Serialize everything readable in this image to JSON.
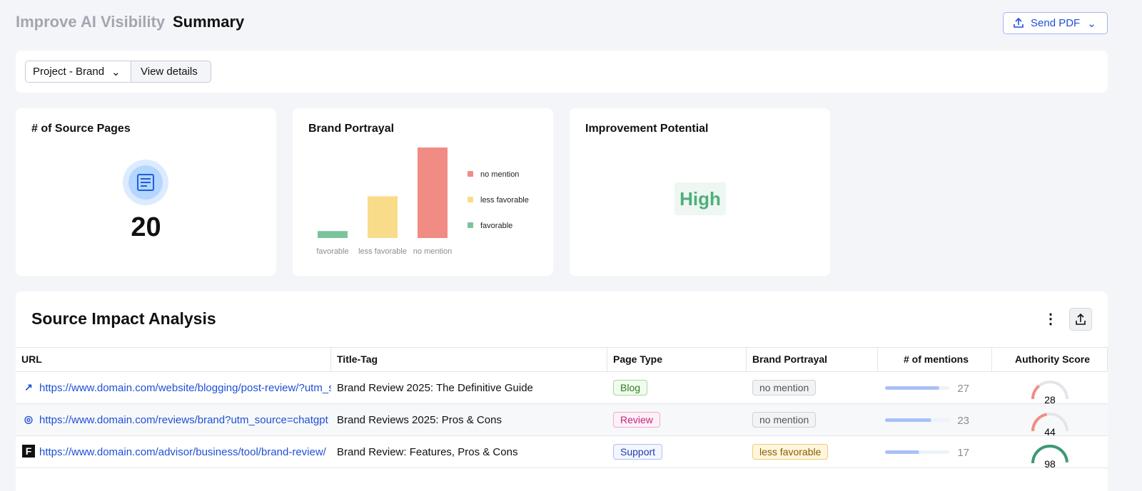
{
  "header": {
    "breadcrumb": "Improve AI Visibility",
    "title": "Summary",
    "send_pdf": "Send PDF"
  },
  "filters": {
    "project": "Project - Brand",
    "view_details": "View details"
  },
  "source_pages": {
    "title": "# of Source Pages",
    "value": 20
  },
  "brand_portrayal": {
    "title": "Brand Portrayal"
  },
  "chart_data": {
    "type": "bar",
    "categories": [
      "favorable",
      "less favorable",
      "no mention"
    ],
    "values": [
      1,
      6,
      13
    ],
    "colors": [
      "#7cc39a",
      "#f9dc8a",
      "#f08c84"
    ]
  },
  "improvement": {
    "title": "Improvement Potential",
    "value": "High"
  },
  "table": {
    "title": "Source Impact Analysis",
    "columns": [
      "URL",
      "Title-Tag",
      "Page Type",
      "Brand Portrayal",
      "# of mentions",
      "Authority Score"
    ],
    "mentions_lim": [
      0,
      32
    ],
    "authority_lim": [
      0,
      100
    ],
    "rows": [
      {
        "url": "https://www.domain.com/website/blogging/post-review/?utm_source=chatgpt",
        "title_tag": "Brand Review 2025: The Definitive Guide",
        "page_type": "Blog",
        "brand_portrayal": "no mention",
        "mentions": 27,
        "authority": 28,
        "authority_color": "#f08c84"
      },
      {
        "url": "https://www.domain.com/reviews/brand?utm_source=chatgpt",
        "title_tag": "Brand Reviews 2025: Pros & Cons",
        "page_type": "Review",
        "brand_portrayal": "no mention",
        "mentions": 23,
        "authority": 44,
        "authority_color": "#f08c84"
      },
      {
        "url": "https://www.domain.com/advisor/business/tool/brand-review/",
        "title_tag": "Brand Review: Features, Pros & Cons",
        "page_type": "Support",
        "brand_portrayal": "less favorable",
        "mentions": 17,
        "authority": 98,
        "authority_color": "#3a9a72"
      }
    ]
  }
}
